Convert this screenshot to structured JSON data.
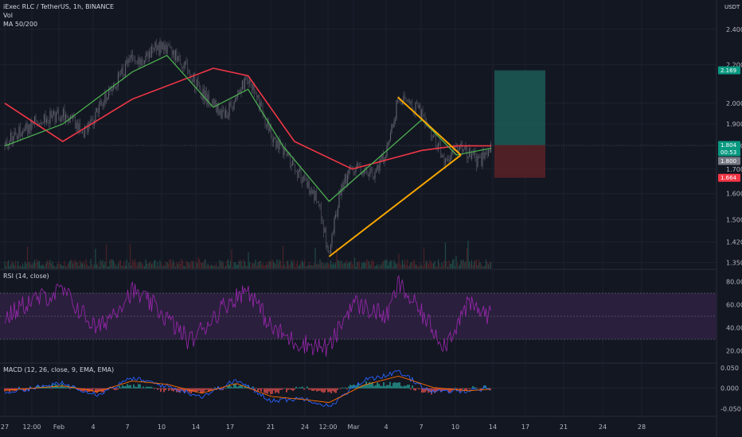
{
  "legend": {
    "symbol": "iExec RLC / TetherUS, 1h, BINANCE",
    "vol": "Vol",
    "ma": "MA 50/200",
    "rsi": "RSI (14, close)",
    "macd": "MACD (12, 26, close, 9, EMA, EMA)"
  },
  "currency": "USDT",
  "price_tags": {
    "target": "2.169",
    "last": "1.804",
    "countdown": "00:53",
    "ma": "1.800",
    "stop": "1.664"
  },
  "chart_data": [
    {
      "type": "candlestick",
      "title": "iExec RLC / TetherUS, 1h, BINANCE",
      "x_ticks": [
        "27",
        "12:00",
        "Feb",
        "4",
        "7",
        "10",
        "14",
        "17",
        "21",
        "24",
        "12:00",
        "Mar",
        "4",
        "7",
        "10",
        "14",
        "17",
        "21",
        "24",
        "28"
      ],
      "y_ticks": [
        "2.400",
        "2.200",
        "2.000",
        "1.900",
        "1.800",
        "1.700",
        "1.600",
        "1.500",
        "1.420",
        "1.350"
      ],
      "y_scale": "log",
      "ylim": [
        1.33,
        2.52
      ],
      "close_path": [
        {
          "x": "Jan 27",
          "y": 1.8
        },
        {
          "x": "Jan 28",
          "y": 1.86
        },
        {
          "x": "Jan 30",
          "y": 1.92
        },
        {
          "x": "Feb 1",
          "y": 1.95
        },
        {
          "x": "Feb 3",
          "y": 1.86
        },
        {
          "x": "Feb 5",
          "y": 2.05
        },
        {
          "x": "Feb 7",
          "y": 2.24
        },
        {
          "x": "Feb 8",
          "y": 2.22
        },
        {
          "x": "Feb 9",
          "y": 2.3
        },
        {
          "x": "Feb 11",
          "y": 2.25
        },
        {
          "x": "Feb 13",
          "y": 2.05
        },
        {
          "x": "Feb 15",
          "y": 1.93
        },
        {
          "x": "Feb 17",
          "y": 2.14
        },
        {
          "x": "Feb 19",
          "y": 1.85
        },
        {
          "x": "Feb 20",
          "y": 1.78
        },
        {
          "x": "Feb 22",
          "y": 1.64
        },
        {
          "x": "Feb 23",
          "y": 1.58
        },
        {
          "x": "Feb 24",
          "y": 1.37
        },
        {
          "x": "Feb 25",
          "y": 1.62
        },
        {
          "x": "Feb 26",
          "y": 1.7
        },
        {
          "x": "Feb 28",
          "y": 1.68
        },
        {
          "x": "Mar 1",
          "y": 1.78
        },
        {
          "x": "Mar 2",
          "y": 2.03
        },
        {
          "x": "Mar 4",
          "y": 1.95
        },
        {
          "x": "Mar 6",
          "y": 1.74
        },
        {
          "x": "Mar 7",
          "y": 1.8
        },
        {
          "x": "Mar 9",
          "y": 1.73
        },
        {
          "x": "Mar 10",
          "y": 1.8
        }
      ],
      "ma_fast": [
        {
          "x": "Jan 27",
          "y": 1.8
        },
        {
          "x": "Feb 1",
          "y": 1.9
        },
        {
          "x": "Feb 7",
          "y": 2.16
        },
        {
          "x": "Feb 10",
          "y": 2.25
        },
        {
          "x": "Feb 14",
          "y": 1.98
        },
        {
          "x": "Feb 17",
          "y": 2.07
        },
        {
          "x": "Feb 20",
          "y": 1.8
        },
        {
          "x": "Feb 24",
          "y": 1.57
        },
        {
          "x": "Mar 1",
          "y": 1.78
        },
        {
          "x": "Mar 4",
          "y": 1.92
        },
        {
          "x": "Mar 7",
          "y": 1.76
        },
        {
          "x": "Mar 10",
          "y": 1.79
        }
      ],
      "ma_slow": [
        {
          "x": "Jan 27",
          "y": 2.0
        },
        {
          "x": "Feb 1",
          "y": 1.82
        },
        {
          "x": "Feb 7",
          "y": 2.02
        },
        {
          "x": "Feb 14",
          "y": 2.18
        },
        {
          "x": "Feb 17",
          "y": 2.14
        },
        {
          "x": "Feb 21",
          "y": 1.82
        },
        {
          "x": "Feb 26",
          "y": 1.7
        },
        {
          "x": "Mar 4",
          "y": 1.78
        },
        {
          "x": "Mar 7",
          "y": 1.8
        },
        {
          "x": "Mar 10",
          "y": 1.8
        }
      ],
      "triangle": [
        {
          "x": "Feb 24",
          "y": 1.37
        },
        {
          "x": "Mar 2",
          "y": 2.03
        },
        {
          "x": "Mar 10",
          "y": 1.73
        }
      ],
      "position": {
        "entry": 1.804,
        "target": 2.169,
        "stop": 1.664,
        "from": "Mar 14",
        "to": "Mar 18"
      },
      "colors": {
        "ma_fast": "#4caf50",
        "ma_slow": "#f23645",
        "candles": "#787b86",
        "triangle": "#f7a600",
        "profit": "#1c5a56",
        "loss": "#5a2226"
      }
    },
    {
      "type": "line",
      "title": "RSI (14, close)",
      "y_ticks": [
        "80.00",
        "60.00",
        "40.00",
        "20.00"
      ],
      "ylim": [
        10,
        90
      ],
      "levels": [
        70,
        50,
        30
      ],
      "values": [
        {
          "x": "Jan 27",
          "y": 48
        },
        {
          "x": "Jan 29",
          "y": 62
        },
        {
          "x": "Feb 1",
          "y": 72
        },
        {
          "x": "Feb 4",
          "y": 38
        },
        {
          "x": "Feb 7",
          "y": 72
        },
        {
          "x": "Feb 9",
          "y": 58
        },
        {
          "x": "Feb 12",
          "y": 28
        },
        {
          "x": "Feb 15",
          "y": 60
        },
        {
          "x": "Feb 17",
          "y": 74
        },
        {
          "x": "Feb 19",
          "y": 40
        },
        {
          "x": "Feb 21",
          "y": 28
        },
        {
          "x": "Feb 24",
          "y": 22
        },
        {
          "x": "Feb 26",
          "y": 62
        },
        {
          "x": "Mar 1",
          "y": 50
        },
        {
          "x": "Mar 2",
          "y": 78
        },
        {
          "x": "Mar 4",
          "y": 52
        },
        {
          "x": "Mar 6",
          "y": 25
        },
        {
          "x": "Mar 8",
          "y": 60
        },
        {
          "x": "Mar 10",
          "y": 50
        }
      ],
      "colors": {
        "line": "#9c27b0",
        "band": "#2a1f3d"
      }
    },
    {
      "type": "line",
      "title": "MACD (12, 26, close, 9, EMA, EMA)",
      "y_ticks": [
        "0.050",
        "0.000",
        "-0.050"
      ],
      "ylim": [
        -0.065,
        0.06
      ],
      "macd": [
        {
          "x": "Jan 27",
          "y": -0.01
        },
        {
          "x": "Feb 1",
          "y": 0.012
        },
        {
          "x": "Feb 4",
          "y": -0.015
        },
        {
          "x": "Feb 7",
          "y": 0.025
        },
        {
          "x": "Feb 10",
          "y": 0.005
        },
        {
          "x": "Feb 13",
          "y": -0.02
        },
        {
          "x": "Feb 16",
          "y": 0.02
        },
        {
          "x": "Feb 19",
          "y": -0.03
        },
        {
          "x": "Feb 22",
          "y": -0.025
        },
        {
          "x": "Feb 24",
          "y": -0.045
        },
        {
          "x": "Feb 27",
          "y": 0.02
        },
        {
          "x": "Mar 2",
          "y": 0.04
        },
        {
          "x": "Mar 5",
          "y": -0.01
        },
        {
          "x": "Mar 8",
          "y": -0.005
        },
        {
          "x": "Mar 10",
          "y": 0.0
        }
      ],
      "signal": [
        {
          "x": "Jan 27",
          "y": -0.005
        },
        {
          "x": "Feb 1",
          "y": 0.006
        },
        {
          "x": "Feb 4",
          "y": -0.008
        },
        {
          "x": "Feb 7",
          "y": 0.018
        },
        {
          "x": "Feb 10",
          "y": 0.01
        },
        {
          "x": "Feb 13",
          "y": -0.012
        },
        {
          "x": "Feb 16",
          "y": 0.012
        },
        {
          "x": "Feb 19",
          "y": -0.02
        },
        {
          "x": "Feb 22",
          "y": -0.028
        },
        {
          "x": "Feb 24",
          "y": -0.035
        },
        {
          "x": "Feb 27",
          "y": 0.008
        },
        {
          "x": "Mar 2",
          "y": 0.03
        },
        {
          "x": "Mar 5",
          "y": 0.002
        },
        {
          "x": "Mar 8",
          "y": -0.006
        },
        {
          "x": "Mar 10",
          "y": -0.002
        }
      ],
      "colors": {
        "macd": "#2962ff",
        "signal": "#ff6d00",
        "hist_up": "#26a69a",
        "hist_down": "#ef5350"
      }
    }
  ]
}
